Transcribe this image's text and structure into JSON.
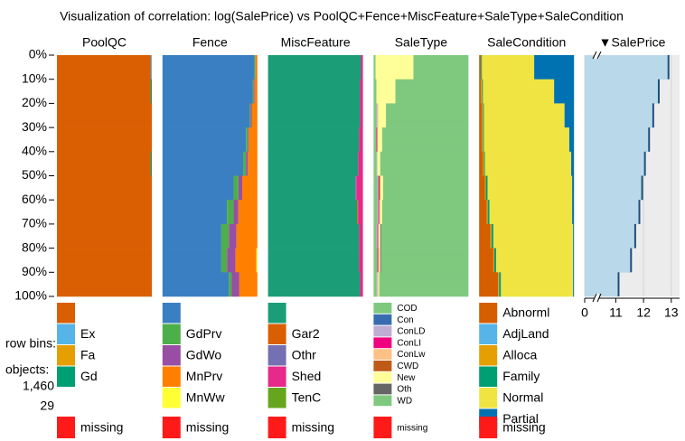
{
  "chart_data": {
    "type": "tableplot",
    "title": "Visualization of correlation: log(SalePrice) vs PoolQC+Fence+MiscFeature+SaleType+SaleCondition",
    "yticks": [
      {
        "value": 0,
        "label": "0%"
      },
      {
        "value": 10,
        "label": "10%"
      },
      {
        "value": 20,
        "label": "20%"
      },
      {
        "value": 30,
        "label": "30%"
      },
      {
        "value": 40,
        "label": "40%"
      },
      {
        "value": 50,
        "label": "50%"
      },
      {
        "value": 60,
        "label": "60%"
      },
      {
        "value": 70,
        "label": "70%"
      },
      {
        "value": 80,
        "label": "80%"
      },
      {
        "value": 90,
        "label": "90%"
      },
      {
        "value": 100,
        "label": "100%"
      }
    ],
    "ylim": [
      0,
      100
    ],
    "info": {
      "row_bins_label": "row bins:",
      "objects_label": "objects:",
      "objects": "1,460",
      "rows_per_bin": "29"
    },
    "columns": [
      {
        "name": "PoolQC",
        "kind": "categorical",
        "categories": [
          {
            "label": null,
            "color": "#d95f02"
          },
          {
            "label": "Ex",
            "color": "#56b4e9"
          },
          {
            "label": "Fa",
            "color": "#e69f00"
          },
          {
            "label": "Gd",
            "color": "#009e73"
          }
        ],
        "missing": {
          "label": "missing",
          "color": "#ff1a1a"
        },
        "bins": [
          [
            99,
            1,
            0,
            0,
            0
          ],
          [
            99,
            0,
            0,
            1,
            0
          ],
          [
            100,
            0,
            0,
            0,
            0
          ],
          [
            100,
            0,
            0,
            0,
            0
          ],
          [
            99,
            0,
            0,
            1,
            0
          ],
          [
            100,
            0,
            0,
            0,
            0
          ],
          [
            100,
            0,
            0,
            0,
            0
          ],
          [
            100,
            0,
            0,
            0,
            0
          ],
          [
            100,
            0,
            0,
            0,
            0
          ],
          [
            100,
            0,
            0,
            0,
            0
          ]
        ]
      },
      {
        "name": "Fence",
        "kind": "categorical",
        "categories": [
          {
            "label": null,
            "color": "#3a7fc1"
          },
          {
            "label": "GdPrv",
            "color": "#4daf4a"
          },
          {
            "label": "GdWo",
            "color": "#984ea3"
          },
          {
            "label": "MnPrv",
            "color": "#ff7f00"
          },
          {
            "label": "MnWw",
            "color": "#ffff33"
          }
        ],
        "missing": {
          "label": "missing",
          "color": "#ff1a1a"
        },
        "bins": [
          [
            97,
            1,
            0,
            2,
            0,
            0
          ],
          [
            95,
            1,
            1,
            3,
            0,
            0
          ],
          [
            92,
            1,
            1,
            6,
            0,
            0
          ],
          [
            88,
            2,
            1,
            9,
            0,
            0
          ],
          [
            85,
            3,
            2,
            10,
            0,
            0
          ],
          [
            75,
            5,
            4,
            16,
            0,
            0
          ],
          [
            68,
            7,
            5,
            20,
            0,
            0
          ],
          [
            62,
            8,
            8,
            22,
            0,
            0
          ],
          [
            62,
            6,
            9,
            22,
            1,
            0
          ],
          [
            70,
            3,
            8,
            19,
            0,
            0
          ]
        ]
      },
      {
        "name": "MiscFeature",
        "kind": "categorical",
        "categories": [
          {
            "label": null,
            "color": "#1b9e77"
          },
          {
            "label": "Gar2",
            "color": "#d95f02"
          },
          {
            "label": "Othr",
            "color": "#7570b3"
          },
          {
            "label": "Shed",
            "color": "#e7298a"
          },
          {
            "label": "TenC",
            "color": "#66a61e"
          }
        ],
        "missing": {
          "label": "missing",
          "color": "#ff1a1a"
        },
        "bins": [
          [
            98,
            0,
            0,
            2,
            0,
            0
          ],
          [
            97,
            0,
            0,
            3,
            0,
            0
          ],
          [
            97,
            0,
            0,
            3,
            0,
            0
          ],
          [
            96,
            0,
            0,
            4,
            0,
            0
          ],
          [
            95,
            0,
            0,
            5,
            0,
            0
          ],
          [
            92,
            0,
            1,
            7,
            0,
            0
          ],
          [
            94,
            1,
            0,
            5,
            0,
            0
          ],
          [
            96,
            0,
            0,
            4,
            0,
            0
          ],
          [
            96,
            0,
            0,
            4,
            0,
            0
          ],
          [
            97,
            0,
            0,
            3,
            0,
            0
          ]
        ]
      },
      {
        "name": "SaleType",
        "kind": "categorical",
        "categories": [
          {
            "label": "COD",
            "color": "#7fc97f"
          },
          {
            "label": "Con",
            "color": "#386cb0"
          },
          {
            "label": "ConLD",
            "color": "#beaed4"
          },
          {
            "label": "ConLI",
            "color": "#f0027f"
          },
          {
            "label": "ConLw",
            "color": "#fdc086"
          },
          {
            "label": "CWD",
            "color": "#bf5b17"
          },
          {
            "label": "New",
            "color": "#ffff99"
          },
          {
            "label": "Oth",
            "color": "#666666"
          },
          {
            "label": "WD",
            "color": "#7fc97f"
          }
        ],
        "missing": {
          "label": "missing",
          "color": "#ff1a1a"
        },
        "bins": [
          [
            2,
            0,
            0,
            0,
            0,
            0,
            40,
            0,
            58,
            0
          ],
          [
            3,
            0,
            0,
            0,
            0,
            0,
            20,
            0,
            77,
            0
          ],
          [
            3,
            0,
            1,
            0,
            1,
            0,
            8,
            0,
            87,
            0
          ],
          [
            3,
            0,
            0,
            1,
            0,
            0,
            5,
            0,
            91,
            0
          ],
          [
            3,
            0,
            1,
            0,
            0,
            0,
            3,
            0,
            93,
            0
          ],
          [
            4,
            0,
            1,
            1,
            0,
            1,
            3,
            0,
            90,
            0
          ],
          [
            4,
            0,
            1,
            1,
            1,
            0,
            2,
            0,
            91,
            0
          ],
          [
            3,
            0,
            1,
            1,
            0,
            0,
            2,
            1,
            92,
            0
          ],
          [
            4,
            0,
            0,
            1,
            1,
            0,
            1,
            1,
            92,
            0
          ],
          [
            3,
            0,
            1,
            0,
            1,
            0,
            1,
            0,
            94,
            0
          ]
        ]
      },
      {
        "name": "SaleCondition",
        "kind": "categorical",
        "categories": [
          {
            "label": "Abnorml",
            "color": "#d55e00"
          },
          {
            "label": "AdjLand",
            "color": "#56b4e9"
          },
          {
            "label": "Alloca",
            "color": "#e69f00"
          },
          {
            "label": "Family",
            "color": "#009e73"
          },
          {
            "label": "Normal",
            "color": "#f0e442"
          },
          {
            "label": "Partial",
            "color": "#0072b2"
          }
        ],
        "missing": {
          "label": "missing",
          "color": "#ff1a1a"
        },
        "bins": [
          [
            2,
            0,
            0,
            1,
            55,
            42,
            0
          ],
          [
            2,
            0,
            1,
            1,
            75,
            21,
            0
          ],
          [
            3,
            0,
            1,
            1,
            85,
            10,
            0
          ],
          [
            3,
            0,
            1,
            1,
            90,
            5,
            0
          ],
          [
            4,
            0,
            1,
            1,
            91,
            3,
            0
          ],
          [
            6,
            0,
            1,
            2,
            89,
            2,
            0
          ],
          [
            8,
            0,
            1,
            2,
            87,
            2,
            0
          ],
          [
            12,
            0,
            1,
            2,
            84,
            1,
            0
          ],
          [
            15,
            0,
            1,
            2,
            81,
            1,
            0
          ],
          [
            20,
            0,
            1,
            2,
            76,
            1,
            0
          ]
        ]
      },
      {
        "name": "▼SalePrice",
        "kind": "numeric",
        "color": "#b9d9ea",
        "values": [
          12.9,
          12.55,
          12.35,
          12.2,
          12.05,
          11.95,
          11.85,
          11.7,
          11.55,
          11.1
        ],
        "xlim": [
          0,
          13.3
        ],
        "axis_break": [
          0.2,
          10.4
        ],
        "xticks": [
          0,
          11,
          12,
          13
        ]
      }
    ]
  }
}
